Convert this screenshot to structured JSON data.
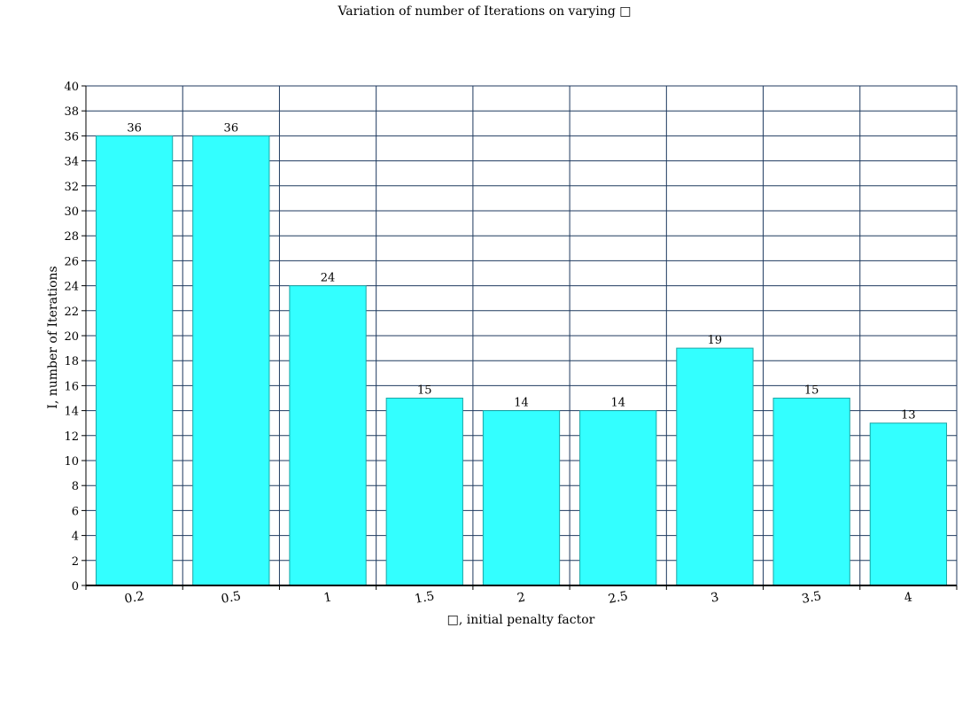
{
  "chart_data": {
    "type": "bar",
    "title": "Variation of number of Iterations on varying □",
    "xlabel": "□, initial penalty factor",
    "ylabel": "I, number of Iterations",
    "categories": [
      "0.2",
      "0.5",
      "1",
      "1.5",
      "2",
      "2.5",
      "3",
      "3.5",
      "4"
    ],
    "values": [
      36,
      36,
      24,
      15,
      14,
      14,
      19,
      15,
      13
    ],
    "ylim": [
      0,
      40
    ],
    "yticks": [
      0,
      2,
      4,
      6,
      8,
      10,
      12,
      14,
      16,
      18,
      20,
      22,
      24,
      26,
      28,
      30,
      32,
      34,
      36,
      38,
      40
    ],
    "grid": true,
    "data_labels": true,
    "colors": {
      "bar_fill": "#33ffff",
      "bar_stroke": "#1aa6a6",
      "grid": "#1f3a5f",
      "axis": "#000000"
    }
  }
}
